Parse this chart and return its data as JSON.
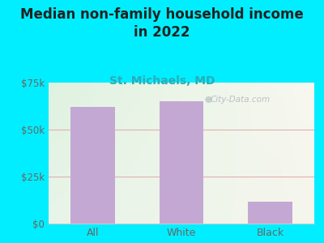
{
  "title_line1": "Median non-family household income",
  "title_line2": "in 2022",
  "subtitle": "St. Michaels, MD",
  "categories": [
    "All",
    "White",
    "Black"
  ],
  "values": [
    62000,
    65000,
    11500
  ],
  "bar_color": "#c4a8d4",
  "title_fontsize": 12,
  "subtitle_fontsize": 10,
  "subtitle_color": "#2aacb8",
  "title_color": "#222222",
  "tick_label_color": "#666666",
  "bg_outer": "#00eeff",
  "bg_plot_top_left": "#dff2e0",
  "bg_plot_bottom_right": "#f5f5ec",
  "grid_color": "#e0b0b0",
  "ylim": [
    0,
    75000
  ],
  "yticks": [
    0,
    25000,
    50000,
    75000
  ],
  "ytick_labels": [
    "$0",
    "$25k",
    "$50k",
    "$75k"
  ],
  "watermark": "City-Data.com"
}
